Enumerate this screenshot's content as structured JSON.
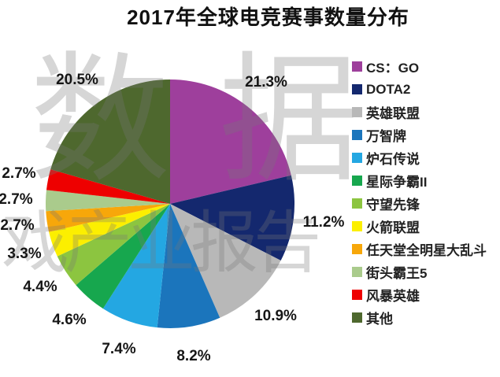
{
  "title": "2017年全球电竞赛事数量分布",
  "watermark": {
    "line1": "数据",
    "line2": "戏产业报告"
  },
  "chart_data": {
    "type": "pie",
    "title": "2017年全球电竞赛事数量分布",
    "start_angle": "top",
    "direction": "clockwise",
    "legend_position": "right",
    "background_color": "#ffffff",
    "slices": [
      {
        "label": "CS：GO",
        "value": 21.3,
        "pct_label": "21.3%",
        "color": "#9E3F9C"
      },
      {
        "label": "DOTA2",
        "value": 11.2,
        "pct_label": "11.2%",
        "color": "#14286E"
      },
      {
        "label": "英雄联盟",
        "value": 10.9,
        "pct_label": "10.9%",
        "color": "#B8B8B8"
      },
      {
        "label": "万智牌",
        "value": 8.2,
        "pct_label": "8.2%",
        "color": "#1B75BC"
      },
      {
        "label": "炉石传说",
        "value": 7.4,
        "pct_label": "7.4%",
        "color": "#24A7E2"
      },
      {
        "label": "星际争霸II",
        "value": 4.6,
        "pct_label": "4.6%",
        "color": "#17A74E"
      },
      {
        "label": "守望先锋",
        "value": 4.4,
        "pct_label": "4.4%",
        "color": "#8CC540"
      },
      {
        "label": "火箭联盟",
        "value": 3.3,
        "pct_label": "3.3%",
        "color": "#FCEF00"
      },
      {
        "label": "任天堂全明星大乱斗",
        "value": 2.7,
        "pct_label": "2.7%",
        "color": "#F7A70A"
      },
      {
        "label": "街头霸王5",
        "value": 2.7,
        "pct_label": "2.7%",
        "color": "#AACB8C"
      },
      {
        "label": "风暴英雄",
        "value": 2.7,
        "pct_label": "2.7%",
        "color": "#EE0000"
      },
      {
        "label": "其他",
        "value": 20.5,
        "pct_label": "20.5%",
        "color": "#4E682E"
      }
    ]
  }
}
